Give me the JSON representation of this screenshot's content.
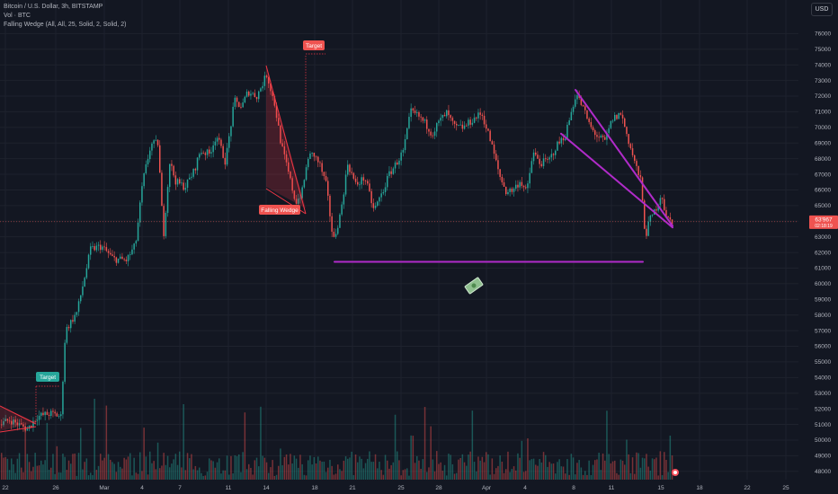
{
  "legend": {
    "symbol_line": "Bitcoin / U.S. Dollar, 3h, BITSTAMP",
    "volume_line": "Vol · BTC",
    "indicator_line": "Falling Wedge (All, All, 25, Solid, 2, Solid, 2)"
  },
  "currency_button": "USD",
  "price_badge": {
    "value": "63'967",
    "countdown": "02:18:19"
  },
  "pattern_labels": {
    "falling_wedge": "Falling Wedge",
    "target_upper": "Target",
    "target_lower": "Target"
  },
  "colors": {
    "up": "#26a69a",
    "down": "#ef5350",
    "wedge": "#f23645",
    "trendline": "#b02bc9",
    "background": "#131722",
    "grid": "#1e222d"
  },
  "chart_data": {
    "type": "candlestick",
    "symbol": "BTCUSD",
    "exchange": "BITSTAMP",
    "interval": "3h",
    "y_axis": {
      "ylim": [
        47700,
        77000
      ],
      "ticks": [
        48000,
        49000,
        50000,
        51000,
        52000,
        53000,
        54000,
        55000,
        56000,
        57000,
        58000,
        59000,
        60000,
        61000,
        62000,
        63000,
        64000,
        65000,
        66000,
        67000,
        68000,
        69000,
        70000,
        71000,
        72000,
        73000,
        74000,
        75000,
        76000
      ],
      "tick_labels": [
        "48000",
        "49000",
        "50000",
        "51000",
        "52000",
        "53000",
        "54000",
        "55000",
        "56000",
        "57000",
        "58000",
        "59000",
        "60000",
        "61000",
        "62000",
        "63000",
        "64000",
        "65000",
        "66000",
        "67000",
        "68000",
        "69000",
        "70000",
        "71000",
        "72000",
        "73000",
        "74000",
        "75000",
        "76000"
      ]
    },
    "x_axis": {
      "tick_labels": [
        "22",
        "26",
        "Mar",
        "4",
        "7",
        "11",
        "14",
        "18",
        "21",
        "25",
        "28",
        "Apr",
        "4",
        "8",
        "11",
        "15",
        "18",
        "22",
        "25"
      ]
    },
    "price_path": [
      {
        "x": 0,
        "y": 51000
      },
      {
        "x": 10,
        "y": 51300
      },
      {
        "x": 20,
        "y": 51000
      },
      {
        "x": 30,
        "y": 50700
      },
      {
        "x": 40,
        "y": 51500
      },
      {
        "x": 55,
        "y": 51700
      },
      {
        "x": 62,
        "y": 51600
      },
      {
        "x": 67,
        "y": 51500
      },
      {
        "x": 72,
        "y": 57000
      },
      {
        "x": 85,
        "y": 58200
      },
      {
        "x": 100,
        "y": 62200
      },
      {
        "x": 112,
        "y": 62400
      },
      {
        "x": 125,
        "y": 61600
      },
      {
        "x": 140,
        "y": 61500
      },
      {
        "x": 150,
        "y": 62500
      },
      {
        "x": 158,
        "y": 66500
      },
      {
        "x": 167,
        "y": 68900
      },
      {
        "x": 175,
        "y": 69000
      },
      {
        "x": 181,
        "y": 63000
      },
      {
        "x": 188,
        "y": 67800
      },
      {
        "x": 195,
        "y": 66500
      },
      {
        "x": 205,
        "y": 66200
      },
      {
        "x": 215,
        "y": 67200
      },
      {
        "x": 222,
        "y": 68500
      },
      {
        "x": 232,
        "y": 68300
      },
      {
        "x": 240,
        "y": 69500
      },
      {
        "x": 250,
        "y": 67800
      },
      {
        "x": 260,
        "y": 71700
      },
      {
        "x": 268,
        "y": 71300
      },
      {
        "x": 275,
        "y": 72300
      },
      {
        "x": 285,
        "y": 72000
      },
      {
        "x": 296,
        "y": 73400
      },
      {
        "x": 305,
        "y": 71400
      },
      {
        "x": 312,
        "y": 68900
      },
      {
        "x": 320,
        "y": 67100
      },
      {
        "x": 328,
        "y": 65200
      },
      {
        "x": 335,
        "y": 65800
      },
      {
        "x": 342,
        "y": 68100
      },
      {
        "x": 348,
        "y": 68300
      },
      {
        "x": 355,
        "y": 67600
      },
      {
        "x": 362,
        "y": 66300
      },
      {
        "x": 370,
        "y": 62700
      },
      {
        "x": 378,
        "y": 64500
      },
      {
        "x": 386,
        "y": 67700
      },
      {
        "x": 395,
        "y": 66300
      },
      {
        "x": 405,
        "y": 66800
      },
      {
        "x": 415,
        "y": 64700
      },
      {
        "x": 425,
        "y": 65900
      },
      {
        "x": 432,
        "y": 67000
      },
      {
        "x": 440,
        "y": 67700
      },
      {
        "x": 448,
        "y": 68500
      },
      {
        "x": 456,
        "y": 71000
      },
      {
        "x": 465,
        "y": 70700
      },
      {
        "x": 473,
        "y": 70200
      },
      {
        "x": 480,
        "y": 69600
      },
      {
        "x": 488,
        "y": 70400
      },
      {
        "x": 496,
        "y": 70900
      },
      {
        "x": 505,
        "y": 70000
      },
      {
        "x": 515,
        "y": 70000
      },
      {
        "x": 525,
        "y": 70500
      },
      {
        "x": 535,
        "y": 70900
      },
      {
        "x": 545,
        "y": 69100
      },
      {
        "x": 555,
        "y": 66900
      },
      {
        "x": 562,
        "y": 65900
      },
      {
        "x": 570,
        "y": 66000
      },
      {
        "x": 578,
        "y": 66600
      },
      {
        "x": 585,
        "y": 65800
      },
      {
        "x": 592,
        "y": 68400
      },
      {
        "x": 600,
        "y": 67700
      },
      {
        "x": 610,
        "y": 67900
      },
      {
        "x": 618,
        "y": 68800
      },
      {
        "x": 628,
        "y": 69500
      },
      {
        "x": 640,
        "y": 72200
      },
      {
        "x": 648,
        "y": 71200
      },
      {
        "x": 656,
        "y": 70000
      },
      {
        "x": 664,
        "y": 69400
      },
      {
        "x": 672,
        "y": 69100
      },
      {
        "x": 680,
        "y": 70500
      },
      {
        "x": 690,
        "y": 70900
      },
      {
        "x": 698,
        "y": 69200
      },
      {
        "x": 705,
        "y": 67800
      },
      {
        "x": 712,
        "y": 66500
      },
      {
        "x": 717,
        "y": 63000
      },
      {
        "x": 722,
        "y": 64100
      },
      {
        "x": 728,
        "y": 64700
      },
      {
        "x": 735,
        "y": 65800
      },
      {
        "x": 740,
        "y": 64200
      },
      {
        "x": 748,
        "y": 63967
      }
    ],
    "trendlines": [
      {
        "name": "support",
        "from": {
          "x": 372,
          "y": 61400
        },
        "to": {
          "x": 715,
          "y": 61400
        }
      },
      {
        "name": "upper",
        "from": {
          "x": 640,
          "y": 72400
        },
        "to": {
          "x": 748,
          "y": 63700
        }
      },
      {
        "name": "lower",
        "from": {
          "x": 624,
          "y": 69600
        },
        "to": {
          "x": 748,
          "y": 63600
        }
      }
    ],
    "last_price": 63967
  }
}
